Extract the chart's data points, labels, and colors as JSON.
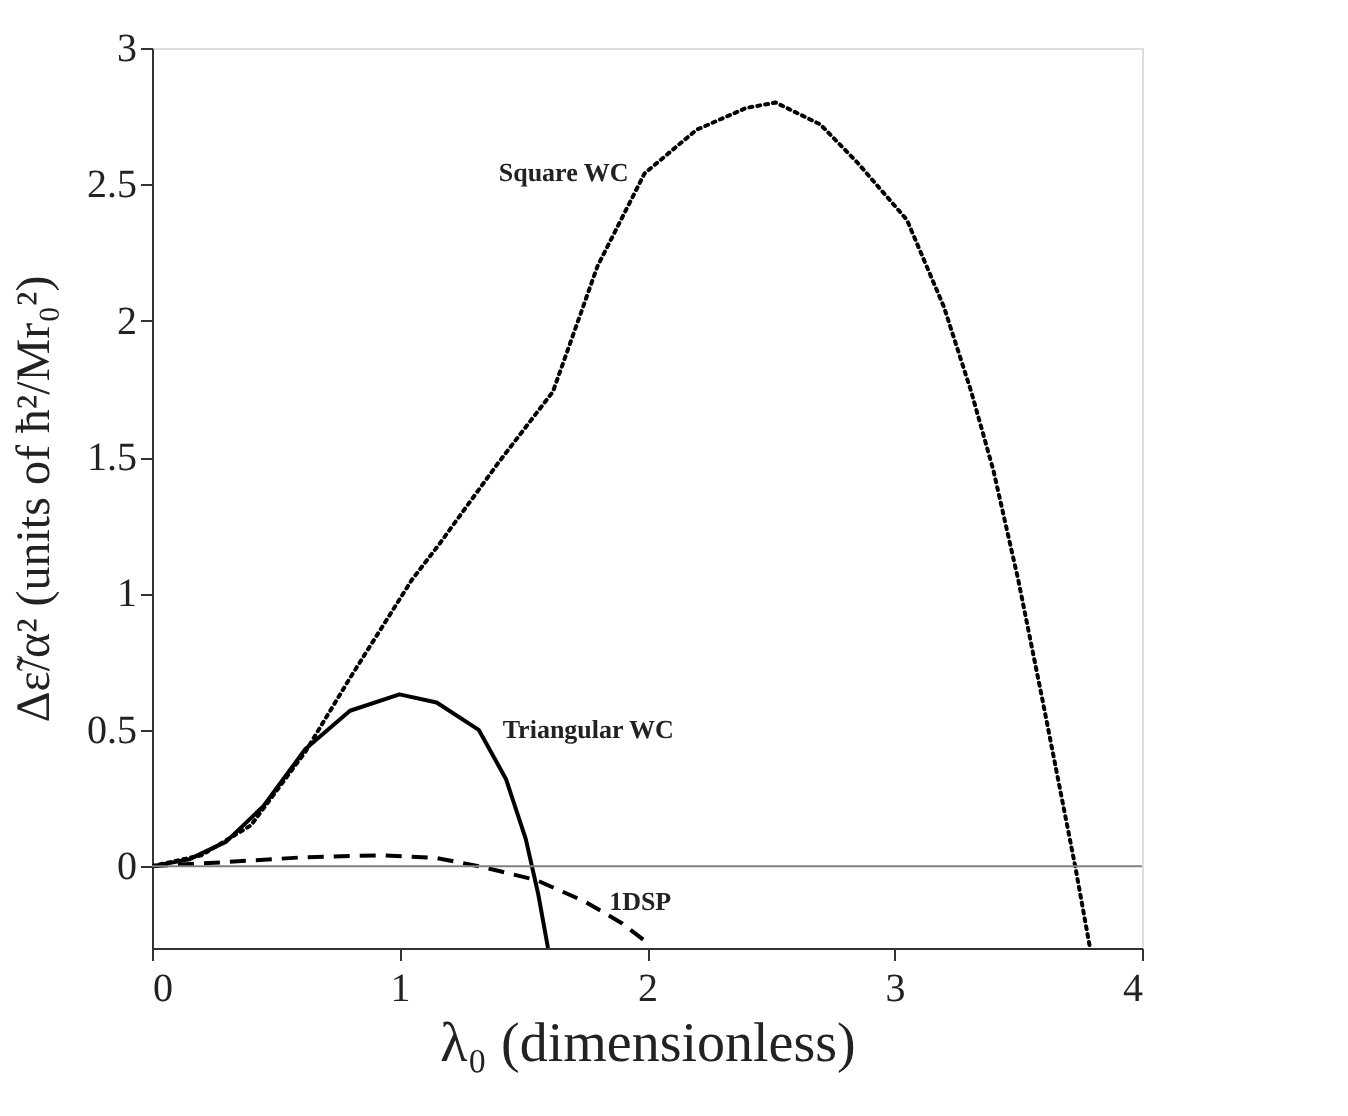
{
  "chart_data": {
    "type": "line",
    "xlabel": "λ₀  (dimensionless)",
    "ylabel": "Δε̃/α²  (units of ħ²/Mr₀²)",
    "xlim": [
      0,
      4
    ],
    "ylim": [
      -0.3,
      3
    ],
    "xticks": [
      0,
      1,
      2,
      3,
      4
    ],
    "yticks": [
      0,
      0.5,
      1,
      1.5,
      2,
      2.5,
      3
    ],
    "grid": false,
    "series": [
      {
        "color": "#000000",
        "line_style": "dotted",
        "x": [
          0,
          0.2,
          0.4,
          0.62,
          0.8,
          1.05,
          1.16,
          1.4,
          1.62,
          1.8,
          1.99,
          2.2,
          2.4,
          2.52,
          2.7,
          2.85,
          3.05,
          3.2,
          3.31,
          3.4,
          3.5,
          3.6,
          3.73,
          3.79
        ],
        "values": [
          0,
          0.04,
          0.15,
          0.42,
          0.69,
          1.05,
          1.18,
          1.48,
          1.74,
          2.2,
          2.54,
          2.7,
          2.78,
          2.8,
          2.72,
          2.58,
          2.37,
          2.05,
          1.74,
          1.45,
          1.05,
          0.6,
          0,
          -0.3
        ]
      },
      {
        "color": "#000000",
        "line_style": "solid",
        "x": [
          0,
          0.15,
          0.3,
          0.45,
          0.62,
          0.8,
          1.0,
          1.15,
          1.32,
          1.43,
          1.51,
          1.56,
          1.6
        ],
        "values": [
          0,
          0.025,
          0.09,
          0.22,
          0.43,
          0.57,
          0.63,
          0.6,
          0.5,
          0.32,
          0.1,
          -0.1,
          -0.3
        ]
      },
      {
        "color": "#000000",
        "line_style": "dashed",
        "x": [
          0,
          0.3,
          0.6,
          0.92,
          1.15,
          1.32,
          1.55,
          1.75,
          1.9,
          2.0
        ],
        "values": [
          0,
          0.015,
          0.032,
          0.04,
          0.03,
          0.0,
          -0.05,
          -0.13,
          -0.21,
          -0.28
        ]
      }
    ],
    "ref_lines": [
      {
        "axis": "y",
        "value": 0,
        "color": "#808080"
      }
    ],
    "annotations": [
      {
        "text": "Square WC",
        "x": 1.99,
        "y": 2.54
      },
      {
        "text": "Triangular WC",
        "x": 1.32,
        "y": 0.5
      },
      {
        "text": "1DSP",
        "x": 1.75,
        "y": -0.13
      }
    ]
  }
}
